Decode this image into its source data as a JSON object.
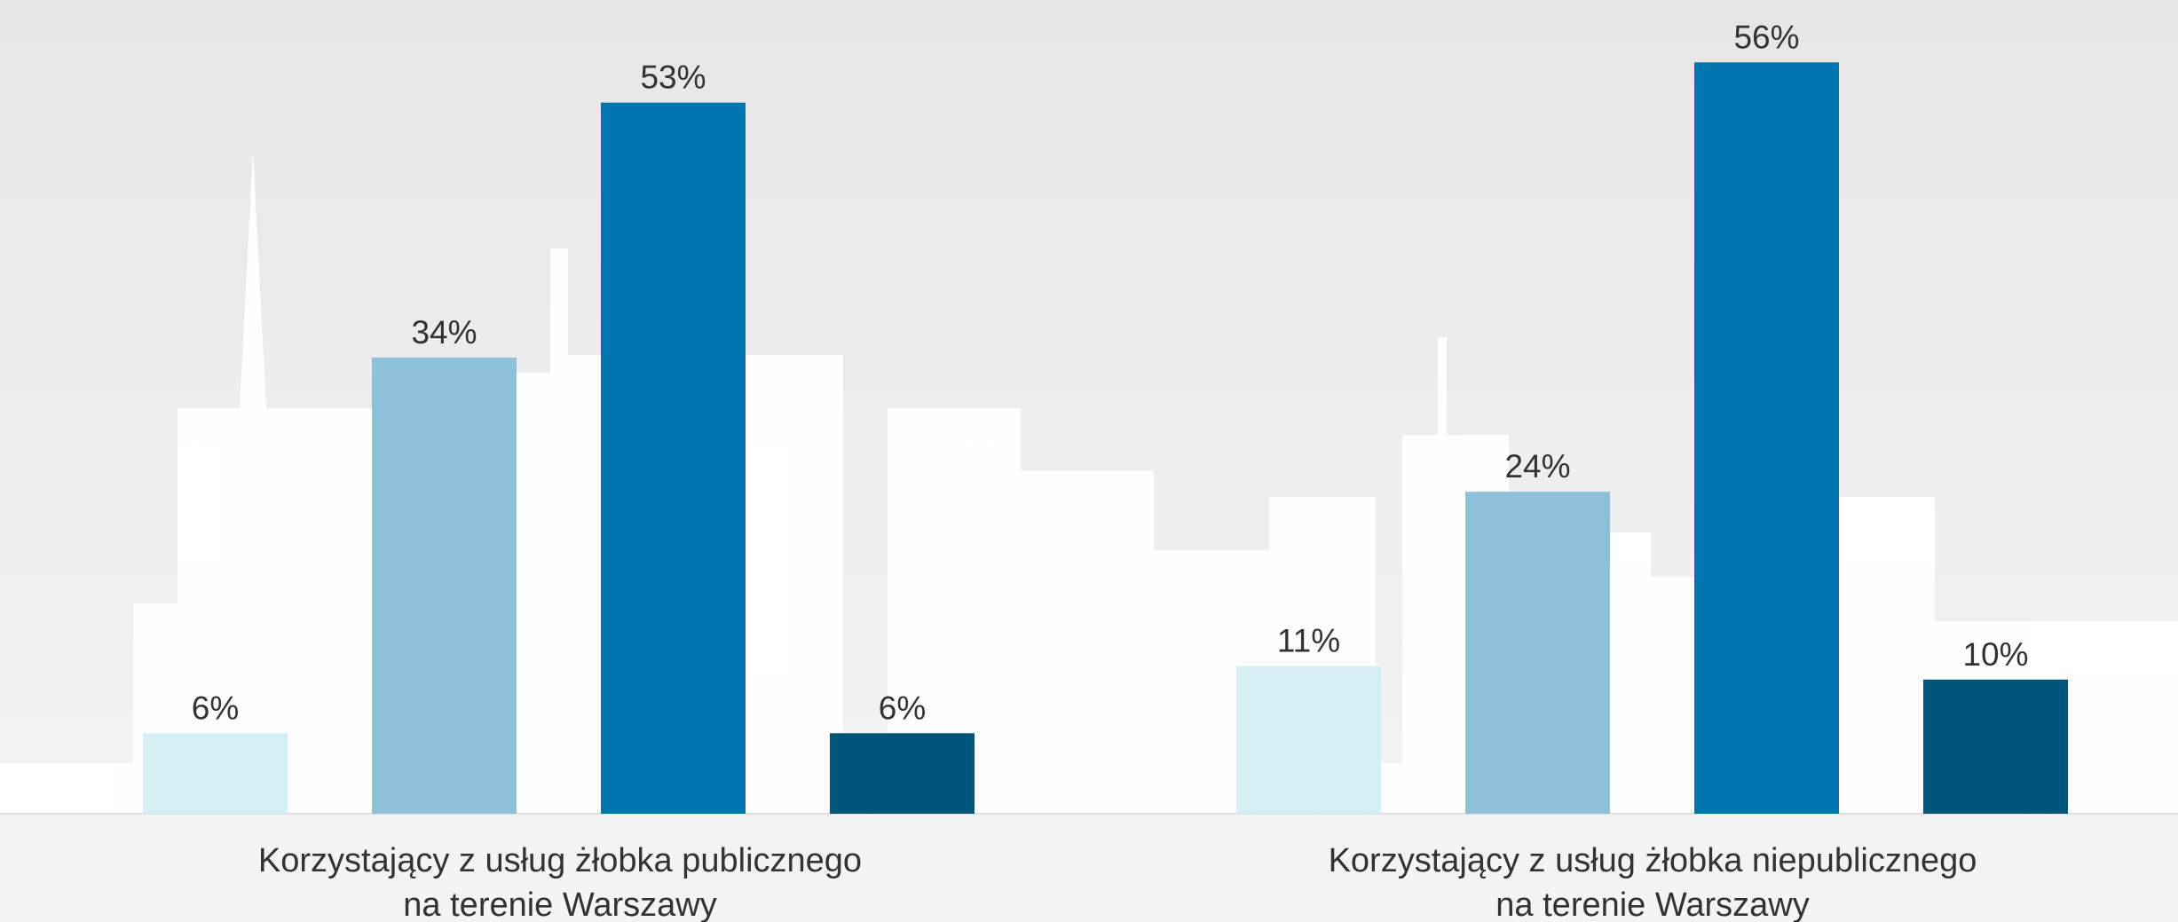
{
  "chart_data": {
    "type": "bar",
    "categories": [
      "Korzystający z usług żłobka publicznego\nna terenie Warszawy",
      "Korzystający z usług żłobka niepublicznego\nna terenie Warszawy"
    ],
    "series": [
      {
        "color": "#d5eef3",
        "values": [
          6,
          11
        ],
        "value_labels": [
          "6%",
          "11%"
        ]
      },
      {
        "color": "#8dc1d9",
        "values": [
          34,
          24
        ],
        "value_labels": [
          "34%",
          "24%"
        ]
      },
      {
        "color": "#0075ae",
        "values": [
          53,
          56
        ],
        "value_labels": [
          "53%",
          "56%"
        ]
      },
      {
        "color": "#005478",
        "values": [
          6,
          10
        ],
        "value_labels": [
          "6%",
          "10%"
        ]
      }
    ]
  }
}
